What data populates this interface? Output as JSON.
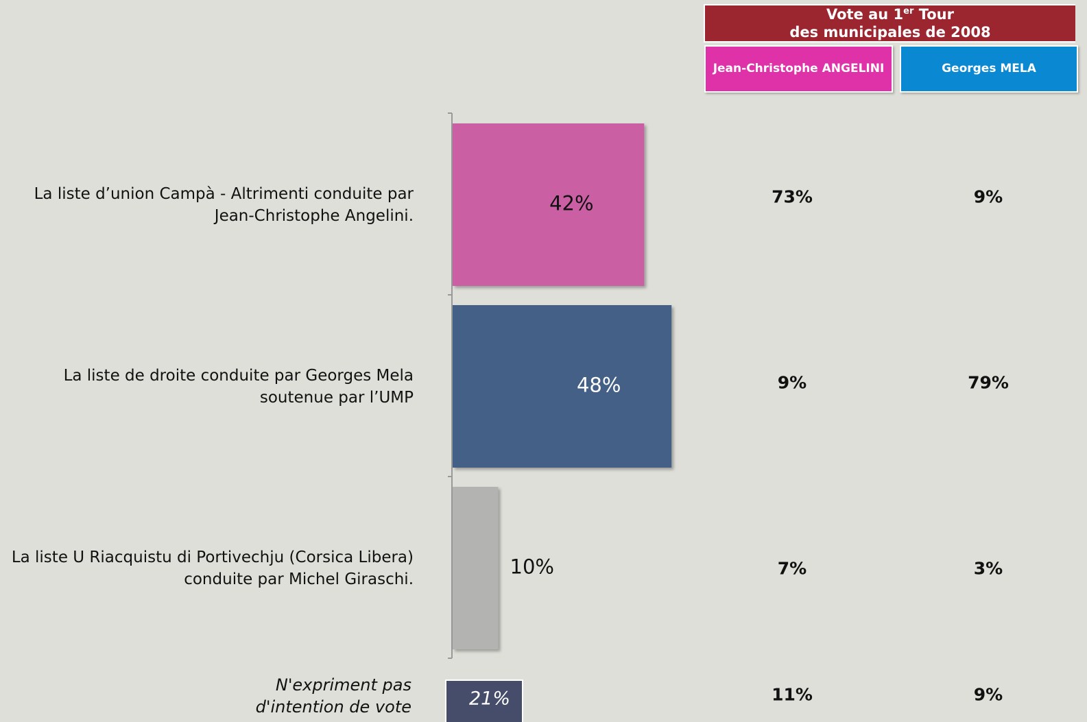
{
  "chart_data": {
    "type": "bar",
    "orientation": "horizontal",
    "categories": [
      "La liste d’union Campà - Altrimenti conduite par Jean-Christophe Angelini.",
      "La liste de droite conduite par Georges Mela soutenue par l’UMP",
      "La liste U Riacquistu di Portivechju (Corsica Libera) conduite par Michel Giraschi."
    ],
    "values": [
      42,
      48,
      10
    ],
    "value_labels": [
      "42%",
      "48%",
      "10%"
    ],
    "colors": [
      "#cb5fa3",
      "#456186",
      "#b3b3b1"
    ],
    "label_colors": [
      "#111111",
      "#ffffff",
      "#111111"
    ],
    "xlim": [
      0,
      100
    ]
  },
  "table": {
    "title_parts": [
      "Vote au 1",
      "er",
      " Tour"
    ],
    "title_line2": "des municipales de 2008",
    "columns": [
      "Jean-Christophe ANGELINI",
      "Georges MELA"
    ],
    "column_colors": [
      "#e032a8",
      "#0a88d2"
    ],
    "rows": [
      [
        "73%",
        "9%"
      ],
      [
        "9%",
        "79%"
      ],
      [
        "7%",
        "3%"
      ],
      [
        "11%",
        "9%"
      ]
    ]
  },
  "no_intention": {
    "label": "N'expriment pas d'intention de vote",
    "value_label": "21%"
  }
}
